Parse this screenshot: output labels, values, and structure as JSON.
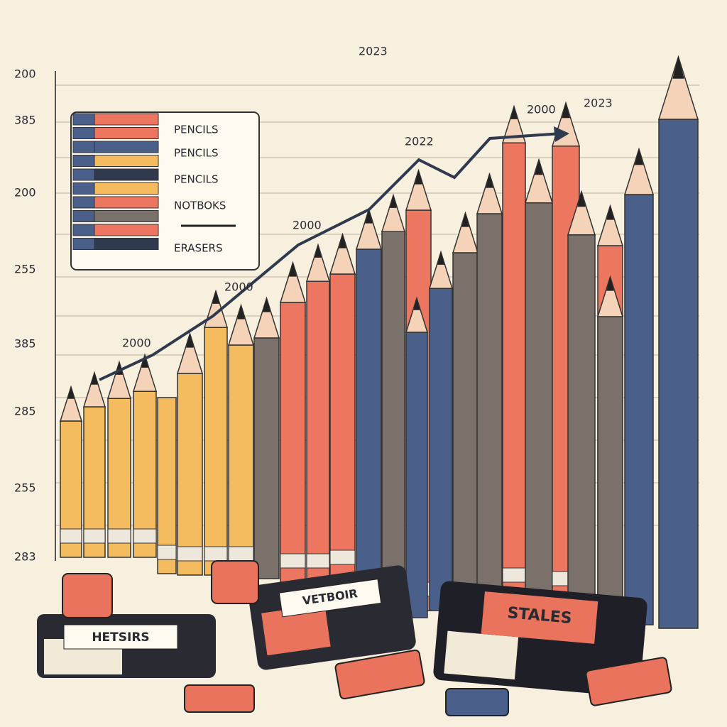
{
  "axis_labels": [
    "200",
    "385",
    "200",
    "255",
    "385",
    "285",
    "255",
    "283"
  ],
  "annotations": [
    "2023",
    "2000",
    "2023",
    "2022",
    "2000",
    "2000",
    "2000"
  ],
  "legend": [
    "PENCILS",
    "PENCILS",
    "PENCILS",
    "NOTBOKS",
    "ERASERS"
  ],
  "book_labels": [
    "HETSIRS",
    "VETBOIR",
    "STALES"
  ]
}
